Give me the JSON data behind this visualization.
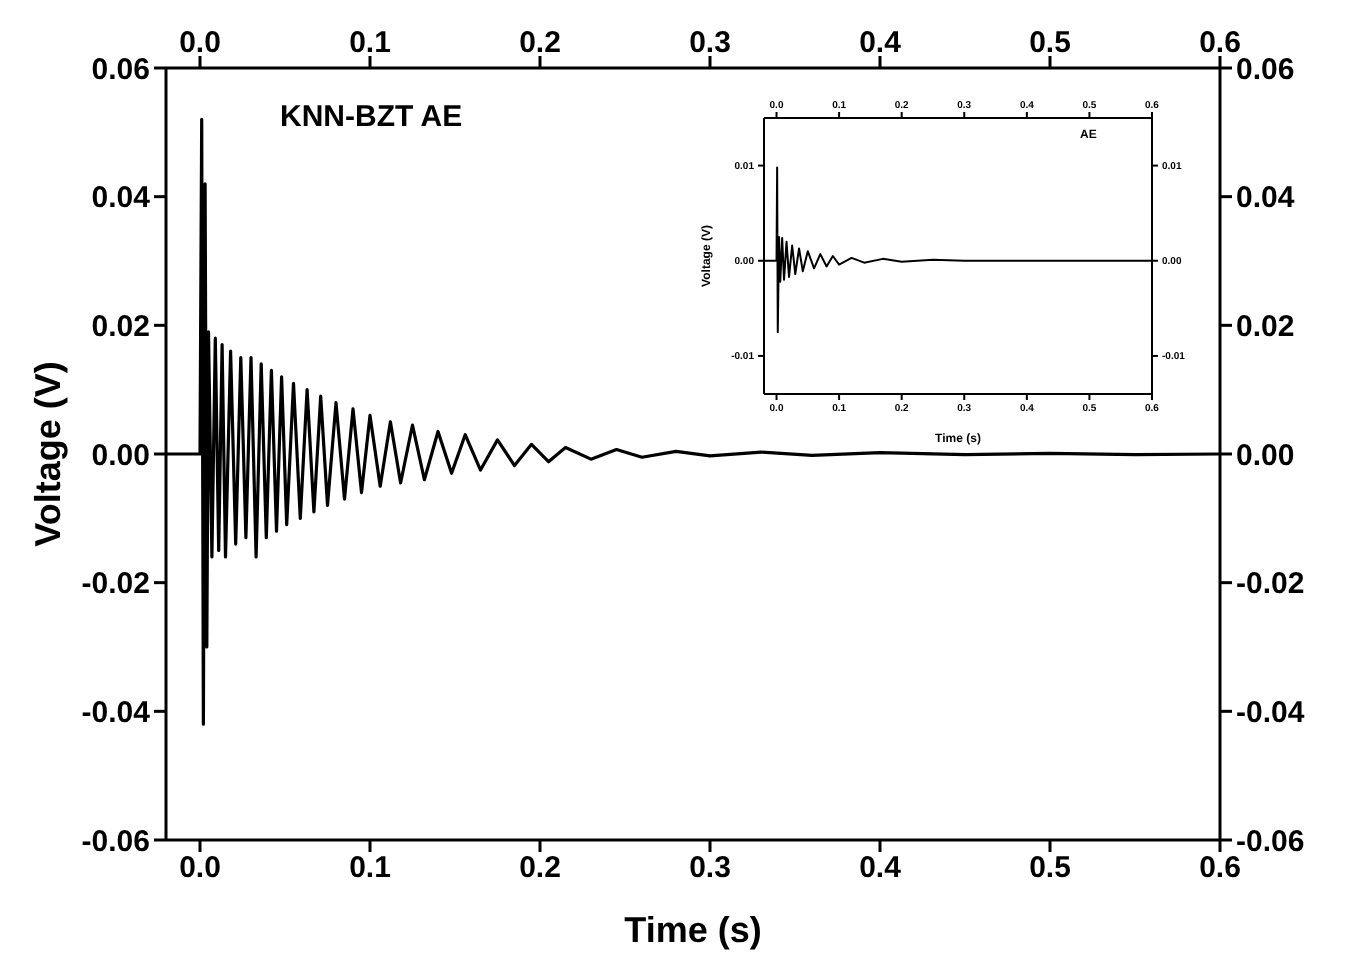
{
  "chart_data": [
    {
      "type": "line",
      "xlabel": "Time (s)",
      "ylabel": "Voltage (V)",
      "annotations": [
        "KNN-BZT AE"
      ],
      "xlim": [
        -0.02,
        0.6
      ],
      "xticks": [
        {
          "value": 0,
          "label": "0.0"
        },
        0.1,
        0.2,
        0.3,
        0.4,
        0.5,
        0.6
      ],
      "x2lim": [
        -0.02,
        0.6
      ],
      "x2ticks": [
        {
          "value": 0,
          "label": "0.0"
        },
        0.1,
        0.2,
        0.3,
        0.4,
        0.5,
        0.6
      ],
      "ylim": [
        -0.06,
        0.06
      ],
      "yticks": [
        -0.06,
        -0.04,
        -0.02,
        {
          "value": 0,
          "label": "0.00"
        },
        0.02,
        0.04,
        0.06
      ],
      "y2lim": [
        -0.06,
        0.06
      ],
      "y2ticks": [
        -0.06,
        -0.04,
        -0.02,
        {
          "value": 0,
          "label": "0.00"
        },
        0.02,
        0.04,
        0.06
      ],
      "grid": false,
      "legend": false,
      "marker": "none",
      "line_style": "solid",
      "series": [
        {
          "color": "#000000",
          "x": [
            -0.02,
            0.0,
            0.001,
            0.002,
            0.003,
            0.004,
            0.005,
            0.007,
            0.009,
            0.011,
            0.013,
            0.015,
            0.018,
            0.021,
            0.024,
            0.027,
            0.03,
            0.033,
            0.036,
            0.039,
            0.042,
            0.045,
            0.048,
            0.051,
            0.055,
            0.059,
            0.063,
            0.067,
            0.071,
            0.075,
            0.08,
            0.085,
            0.09,
            0.095,
            0.1,
            0.106,
            0.112,
            0.118,
            0.125,
            0.132,
            0.14,
            0.148,
            0.156,
            0.165,
            0.175,
            0.185,
            0.195,
            0.205,
            0.215,
            0.23,
            0.245,
            0.26,
            0.28,
            0.3,
            0.33,
            0.36,
            0.4,
            0.45,
            0.5,
            0.55,
            0.6
          ],
          "values": [
            0,
            0,
            0.052,
            -0.042,
            0.042,
            -0.03,
            0.019,
            -0.016,
            0.018,
            -0.015,
            0.017,
            -0.016,
            0.016,
            -0.014,
            0.015,
            -0.013,
            0.015,
            -0.016,
            0.014,
            -0.013,
            0.013,
            -0.012,
            0.012,
            -0.011,
            0.011,
            -0.01,
            0.01,
            -0.009,
            0.009,
            -0.008,
            0.008,
            -0.007,
            0.007,
            -0.006,
            0.006,
            -0.005,
            0.005,
            -0.0045,
            0.0045,
            -0.004,
            0.0035,
            -0.003,
            0.003,
            -0.0025,
            0.0022,
            -0.0018,
            0.0015,
            -0.0012,
            0.001,
            -0.0008,
            0.0007,
            -0.0005,
            0.0004,
            -0.0003,
            0.0003,
            -0.0002,
            0.0002,
            -0.0001,
            0.0001,
            -0.0001,
            0
          ]
        }
      ]
    },
    {
      "type": "line",
      "xlabel": "Time (s)",
      "ylabel": "Voltage (V)",
      "annotations": [
        "AE"
      ],
      "xlim": [
        -0.02,
        0.6
      ],
      "xticks": [
        {
          "value": 0,
          "label": "0.0"
        },
        0.1,
        0.2,
        0.3,
        0.4,
        0.5,
        0.6
      ],
      "x2lim": [
        -0.02,
        0.6
      ],
      "x2ticks": [
        {
          "value": 0,
          "label": "0.0"
        },
        0.1,
        0.2,
        0.3,
        0.4,
        0.5,
        0.6
      ],
      "ylim": [
        -0.014,
        0.015
      ],
      "yticks": [
        -0.01,
        {
          "value": 0,
          "label": "0.00"
        },
        0.01
      ],
      "y2lim": [
        -0.014,
        0.015
      ],
      "y2ticks": [
        -0.01,
        {
          "value": 0,
          "label": "0.00"
        },
        0.01
      ],
      "grid": false,
      "legend": false,
      "marker": "none",
      "line_style": "solid",
      "series": [
        {
          "color": "#000000",
          "x": [
            -0.02,
            0.0,
            0.001,
            0.002,
            0.004,
            0.006,
            0.009,
            0.012,
            0.016,
            0.02,
            0.025,
            0.03,
            0.036,
            0.042,
            0.05,
            0.06,
            0.07,
            0.08,
            0.09,
            0.1,
            0.12,
            0.14,
            0.17,
            0.2,
            0.25,
            0.3,
            0.6
          ],
          "values": [
            0,
            0,
            0.0098,
            -0.0075,
            0.0025,
            -0.0022,
            0.0024,
            -0.002,
            0.002,
            -0.0017,
            0.0016,
            -0.0014,
            0.0013,
            -0.0011,
            0.001,
            -0.0008,
            0.0007,
            -0.0006,
            0.0005,
            -0.0004,
            0.0003,
            -0.0002,
            0.0002,
            -0.0001,
            0.0001,
            0,
            0
          ]
        }
      ]
    }
  ]
}
